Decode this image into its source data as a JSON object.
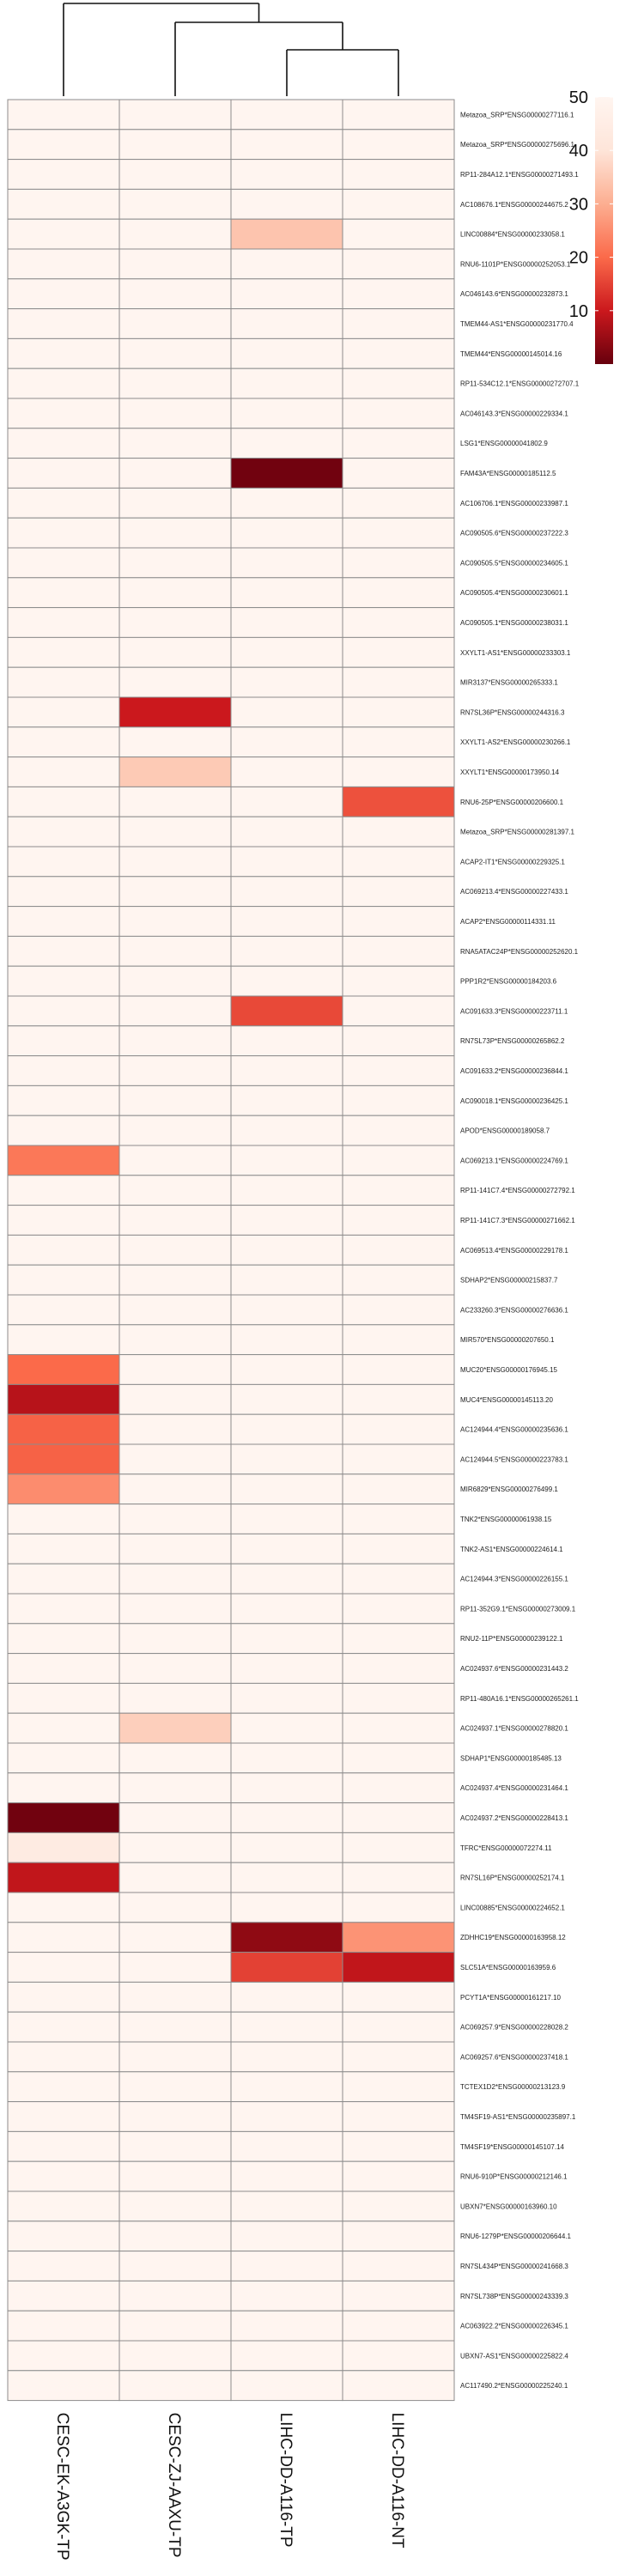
{
  "chart_data": {
    "type": "heatmap",
    "columns": [
      "CESC-EK-A3GK-TP",
      "CESC-ZJ-AAXU-TP",
      "LIHC-DD-A116-TP",
      "LIHC-DD-A116-NT"
    ],
    "rows": [
      "Metazoa_SRP*ENSG00000277116.1",
      "Metazoa_SRP*ENSG00000275696.1",
      "RP11-284A12.1*ENSG00000271493.1",
      "AC108676.1*ENSG00000244675.2",
      "LINC00884*ENSG00000233058.1",
      "RNU6-1101P*ENSG00000252053.1",
      "AC046143.6*ENSG00000232873.1",
      "TMEM44-AS1*ENSG00000231770.4",
      "TMEM44*ENSG00000145014.16",
      "RP11-534C12.1*ENSG00000272707.1",
      "AC046143.3*ENSG00000229334.1",
      "LSG1*ENSG00000041802.9",
      "FAM43A*ENSG00000185112.5",
      "AC106706.1*ENSG00000233987.1",
      "AC090505.6*ENSG00000237222.3",
      "AC090505.5*ENSG00000234605.1",
      "AC090505.4*ENSG00000230601.1",
      "AC090505.1*ENSG00000238031.1",
      "XXYLT1-AS1*ENSG00000233303.1",
      "MIR3137*ENSG00000265333.1",
      "RN7SL36P*ENSG00000244316.3",
      "XXYLT1-AS2*ENSG00000230266.1",
      "XXYLT1*ENSG00000173950.14",
      "RNU6-25P*ENSG00000206600.1",
      "Metazoa_SRP*ENSG00000281397.1",
      "ACAP2-IT1*ENSG00000229325.1",
      "AC069213.4*ENSG00000227433.1",
      "ACAP2*ENSG00000114331.11",
      "RNA5ATAC24P*ENSG00000252620.1",
      "PPP1R2*ENSG00000184203.6",
      "AC091633.3*ENSG00000223711.1",
      "RN7SL73P*ENSG00000265862.2",
      "AC091633.2*ENSG00000236844.1",
      "AC090018.1*ENSG00000236425.1",
      "APOD*ENSG00000189058.7",
      "AC069213.1*ENSG00000224769.1",
      "RP11-141C7.4*ENSG00000272792.1",
      "RP11-141C7.3*ENSG00000271662.1",
      "AC069513.4*ENSG00000229178.1",
      "SDHAP2*ENSG00000215837.7",
      "AC233260.3*ENSG00000276636.1",
      "MIR570*ENSG00000207650.1",
      "MUC20*ENSG00000176945.15",
      "MUC4*ENSG00000145113.20",
      "AC124944.4*ENSG00000235636.1",
      "AC124944.5*ENSG00000223783.1",
      "MIR6829*ENSG00000276499.1",
      "TNK2*ENSG00000061938.15",
      "TNK2-AS1*ENSG00000224614.1",
      "AC124944.3*ENSG00000226155.1",
      "RP11-352G9.1*ENSG00000273009.1",
      "RNU2-11P*ENSG00000239122.1",
      "AC024937.6*ENSG00000231443.2",
      "RP11-480A16.1*ENSG00000265261.1",
      "AC024937.1*ENSG00000278820.1",
      "SDHAP1*ENSG00000185485.13",
      "AC024937.4*ENSG00000231464.1",
      "AC024937.2*ENSG00000228413.1",
      "TFRC*ENSG00000072274.11",
      "RN7SL16P*ENSG00000252174.1",
      "LINC00885*ENSG00000224652.1",
      "ZDHHC19*ENSG00000163958.12",
      "SLC51A*ENSG00000163959.6",
      "PCYT1A*ENSG00000161217.10",
      "AC069257.9*ENSG00000228028.2",
      "AC069257.6*ENSG00000237418.1",
      "TCTEX1D2*ENSG00000213123.9",
      "TM4SF19-AS1*ENSG00000235897.1",
      "TM4SF19*ENSG00000145107.14",
      "RNU6-910P*ENSG00000212146.1",
      "UBXN7*ENSG00000163960.10",
      "RNU6-1279P*ENSG00000206644.1",
      "RN7SL434P*ENSG00000241668.3",
      "RN7SL738P*ENSG00000243339.3",
      "AC063922.2*ENSG00000226345.1",
      "UBXN7-AS1*ENSG00000225822.4",
      "AC117490.2*ENSG00000225240.1"
    ],
    "default_value": 50,
    "overrides": [
      {
        "row": 4,
        "col": 2,
        "value": 34
      },
      {
        "row": 12,
        "col": 2,
        "value": 1
      },
      {
        "row": 20,
        "col": 1,
        "value": 10
      },
      {
        "row": 22,
        "col": 1,
        "value": 35
      },
      {
        "row": 23,
        "col": 3,
        "value": 17
      },
      {
        "row": 30,
        "col": 2,
        "value": 16
      },
      {
        "row": 35,
        "col": 0,
        "value": 22
      },
      {
        "row": 42,
        "col": 0,
        "value": 20
      },
      {
        "row": 43,
        "col": 0,
        "value": 8
      },
      {
        "row": 44,
        "col": 0,
        "value": 19
      },
      {
        "row": 45,
        "col": 0,
        "value": 19
      },
      {
        "row": 46,
        "col": 0,
        "value": 25
      },
      {
        "row": 54,
        "col": 1,
        "value": 36
      },
      {
        "row": 57,
        "col": 0,
        "value": 1
      },
      {
        "row": 58,
        "col": 0,
        "value": 44
      },
      {
        "row": 59,
        "col": 0,
        "value": 9
      },
      {
        "row": 61,
        "col": 2,
        "value": 4
      },
      {
        "row": 61,
        "col": 3,
        "value": 26
      },
      {
        "row": 62,
        "col": 2,
        "value": 15
      },
      {
        "row": 62,
        "col": 3,
        "value": 9
      }
    ],
    "legend": {
      "ticks": [
        50,
        40,
        30,
        20,
        10
      ],
      "range": [
        0,
        50
      ],
      "colors": [
        "#67000d",
        "#cb181d",
        "#fb6a4a",
        "#fcae91",
        "#fee5d9",
        "#fff5f0"
      ]
    },
    "dendrogram": "top",
    "title": "",
    "xlabel": "",
    "ylabel": ""
  }
}
